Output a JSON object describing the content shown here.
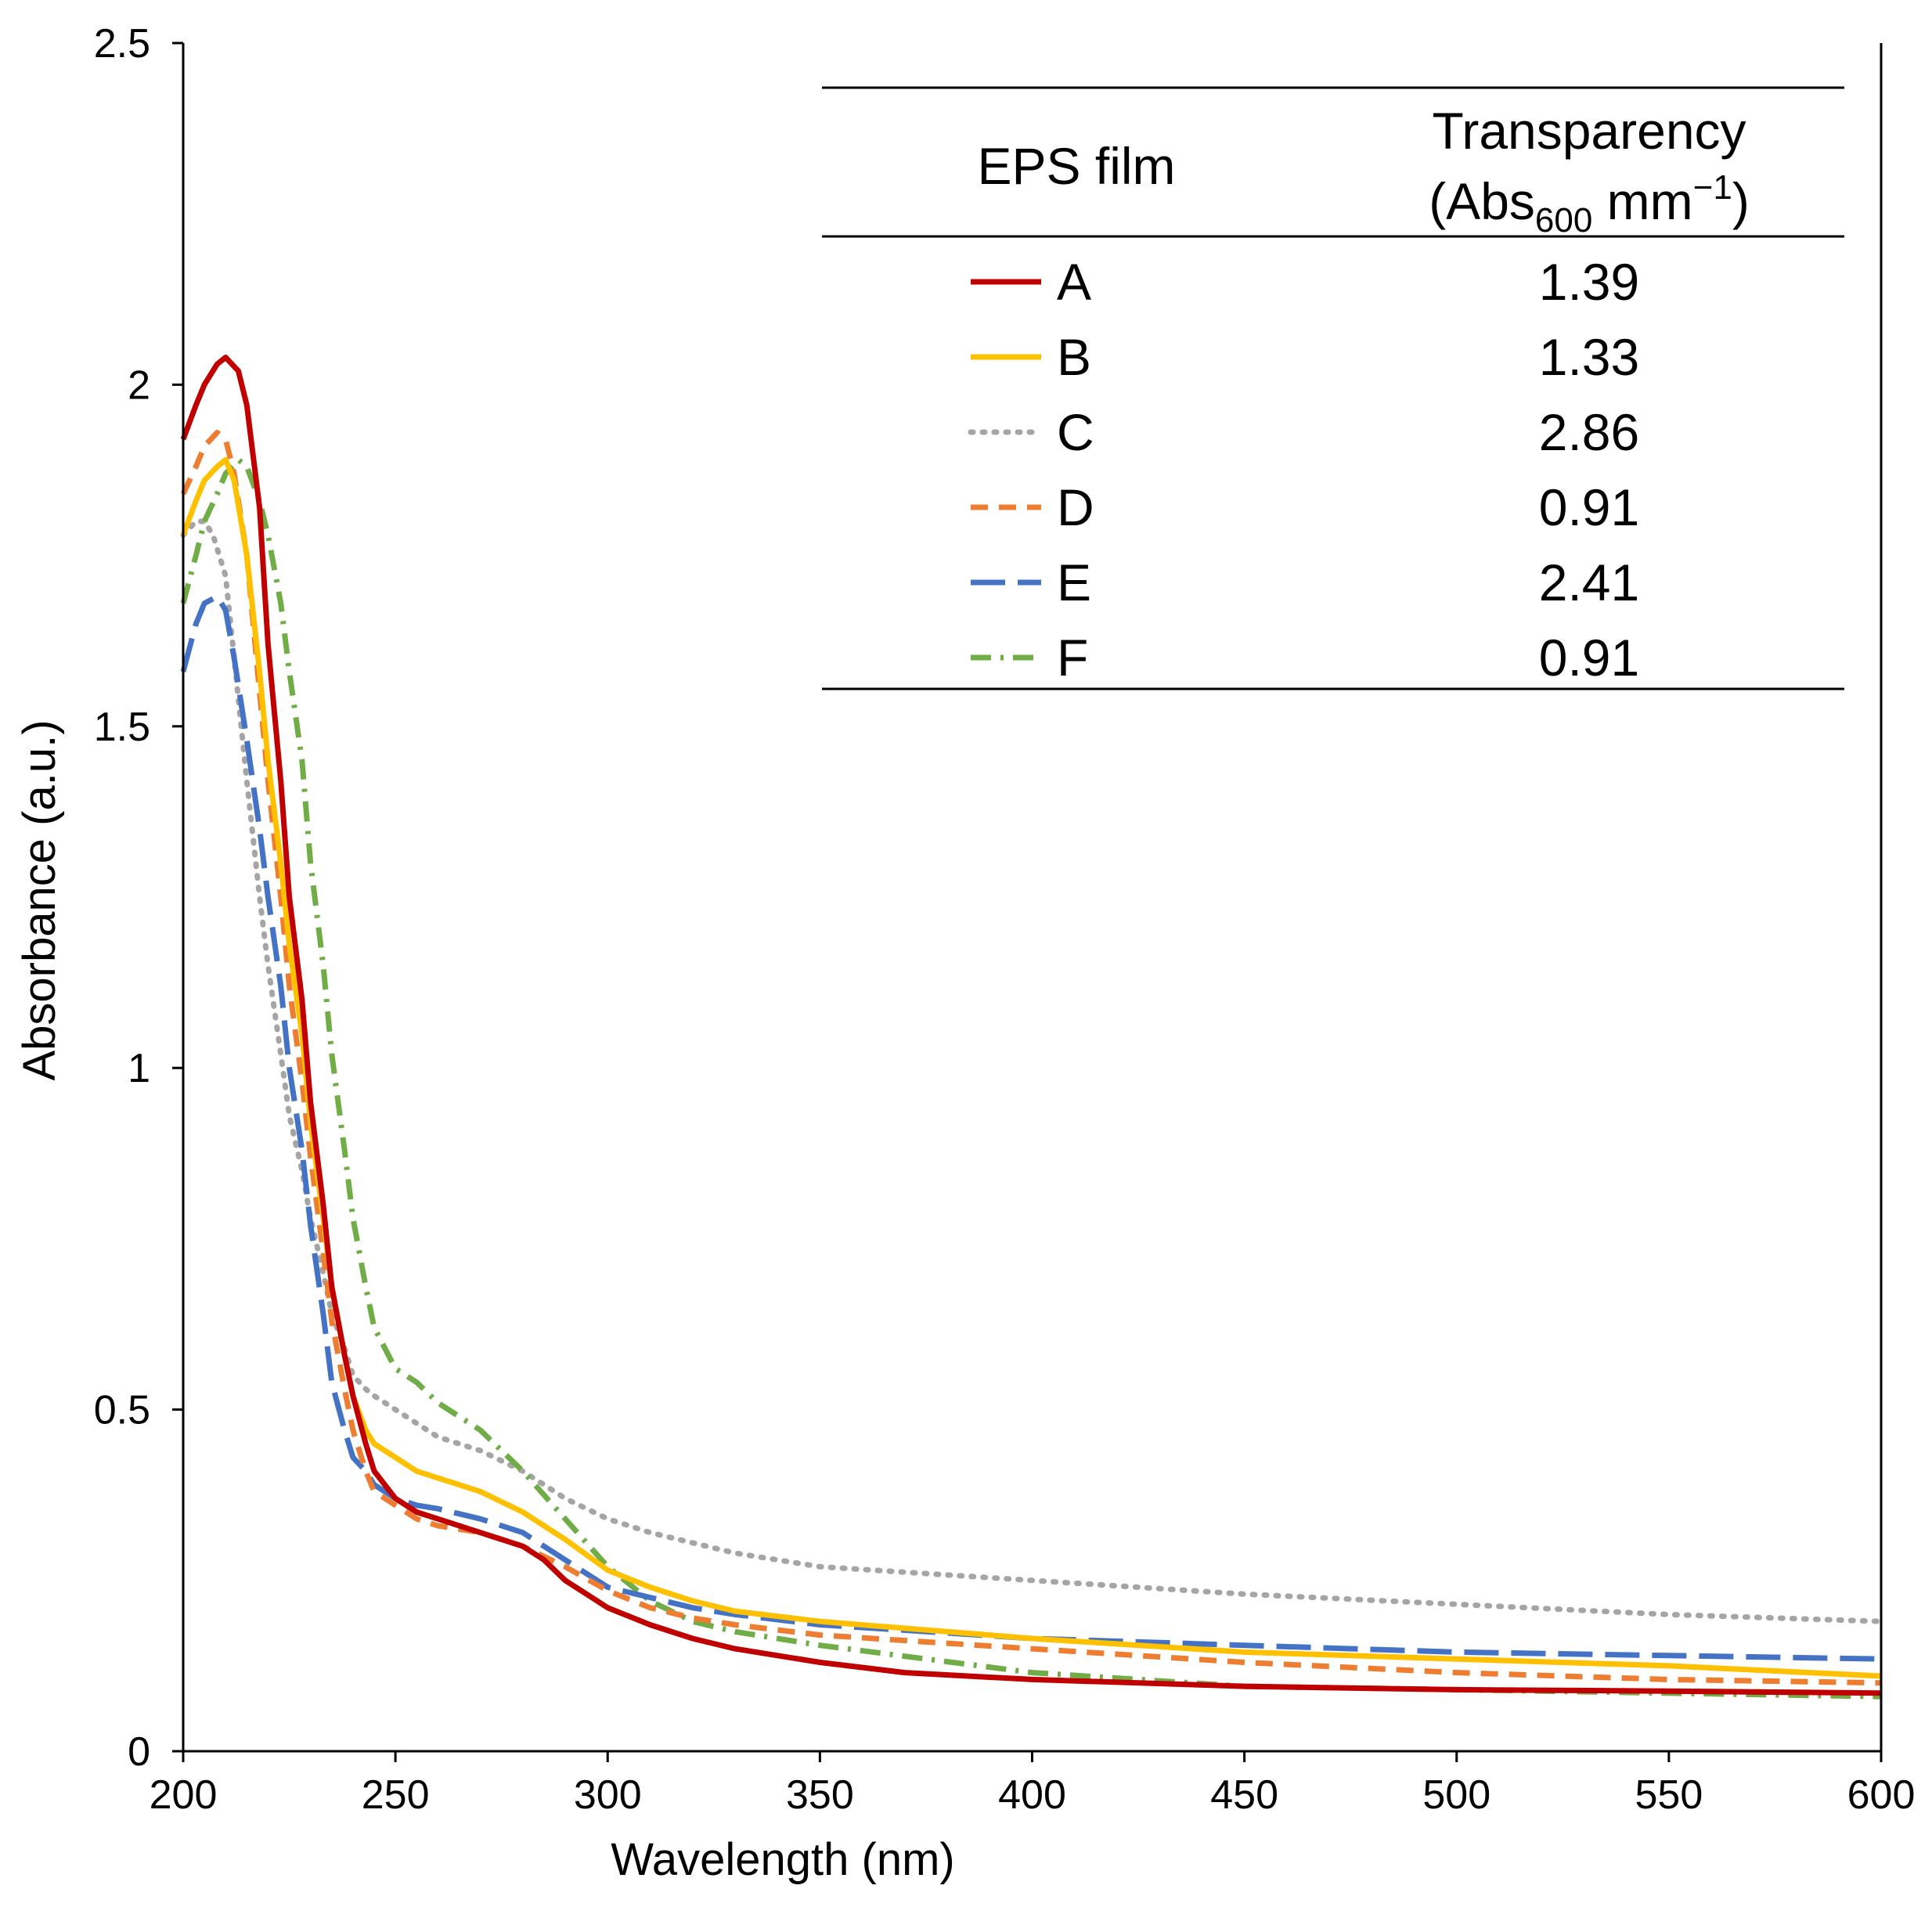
{
  "chart_data": {
    "type": "line",
    "xlabel": "Wavelength (nm)",
    "ylabel": "Absorbance (a.u.)",
    "xlim": [
      200,
      600
    ],
    "ylim": [
      0,
      2.5
    ],
    "x_ticks": [
      200,
      250,
      300,
      350,
      400,
      450,
      500,
      550,
      600
    ],
    "x_tick_labels": [
      "200",
      "250",
      "300",
      "350",
      "400",
      "450",
      "500",
      "550",
      "600"
    ],
    "y_ticks": [
      0,
      0.5,
      1,
      1.5,
      2,
      2.5
    ],
    "y_tick_labels": [
      "0",
      "0.5",
      "1",
      "1.5",
      "2",
      "2.5"
    ],
    "grid": false,
    "legend": {
      "placement": "top-right",
      "header_film": "EPS film",
      "header_transparency": "Transparency",
      "header_unit_prefix": "(Abs",
      "header_unit_sub": "600",
      "header_unit_mid": " mm",
      "header_unit_sup": "−1",
      "header_unit_suffix": ")"
    },
    "series": [
      {
        "name": "A",
        "transparency": "1.39",
        "color": "#C00000",
        "dash": "solid",
        "points": [
          [
            200,
            1.92
          ],
          [
            203,
            1.97
          ],
          [
            205,
            2.0
          ],
          [
            208,
            2.03
          ],
          [
            210,
            2.04
          ],
          [
            213,
            2.02
          ],
          [
            215,
            1.97
          ],
          [
            218,
            1.82
          ],
          [
            220,
            1.62
          ],
          [
            223,
            1.42
          ],
          [
            225,
            1.25
          ],
          [
            228,
            1.1
          ],
          [
            230,
            0.95
          ],
          [
            233,
            0.8
          ],
          [
            235,
            0.68
          ],
          [
            238,
            0.58
          ],
          [
            240,
            0.52
          ],
          [
            243,
            0.45
          ],
          [
            245,
            0.41
          ],
          [
            250,
            0.37
          ],
          [
            255,
            0.35
          ],
          [
            260,
            0.34
          ],
          [
            270,
            0.32
          ],
          [
            280,
            0.3
          ],
          [
            285,
            0.28
          ],
          [
            290,
            0.25
          ],
          [
            300,
            0.21
          ],
          [
            310,
            0.185
          ],
          [
            320,
            0.165
          ],
          [
            330,
            0.15
          ],
          [
            340,
            0.14
          ],
          [
            350,
            0.13
          ],
          [
            370,
            0.115
          ],
          [
            400,
            0.105
          ],
          [
            450,
            0.095
          ],
          [
            500,
            0.09
          ],
          [
            550,
            0.088
          ],
          [
            600,
            0.085
          ]
        ]
      },
      {
        "name": "B",
        "transparency": "1.33",
        "color": "#FFC000",
        "dash": "solid",
        "points": [
          [
            200,
            1.78
          ],
          [
            203,
            1.83
          ],
          [
            205,
            1.86
          ],
          [
            208,
            1.88
          ],
          [
            210,
            1.89
          ],
          [
            212,
            1.86
          ],
          [
            215,
            1.75
          ],
          [
            218,
            1.58
          ],
          [
            220,
            1.45
          ],
          [
            223,
            1.3
          ],
          [
            225,
            1.18
          ],
          [
            228,
            1.05
          ],
          [
            230,
            0.92
          ],
          [
            233,
            0.78
          ],
          [
            235,
            0.68
          ],
          [
            238,
            0.58
          ],
          [
            240,
            0.52
          ],
          [
            243,
            0.47
          ],
          [
            245,
            0.45
          ],
          [
            250,
            0.43
          ],
          [
            255,
            0.41
          ],
          [
            260,
            0.4
          ],
          [
            270,
            0.38
          ],
          [
            280,
            0.35
          ],
          [
            290,
            0.31
          ],
          [
            300,
            0.265
          ],
          [
            310,
            0.24
          ],
          [
            320,
            0.22
          ],
          [
            330,
            0.205
          ],
          [
            350,
            0.19
          ],
          [
            400,
            0.165
          ],
          [
            450,
            0.145
          ],
          [
            500,
            0.135
          ],
          [
            550,
            0.125
          ],
          [
            600,
            0.11
          ]
        ]
      },
      {
        "name": "C",
        "transparency": "2.86",
        "color": "#A5A5A5",
        "dash": "dot",
        "points": [
          [
            200,
            1.78
          ],
          [
            203,
            1.8
          ],
          [
            205,
            1.8
          ],
          [
            207,
            1.78
          ],
          [
            210,
            1.72
          ],
          [
            212,
            1.6
          ],
          [
            215,
            1.42
          ],
          [
            218,
            1.25
          ],
          [
            220,
            1.15
          ],
          [
            223,
            1.02
          ],
          [
            225,
            0.93
          ],
          [
            228,
            0.85
          ],
          [
            230,
            0.78
          ],
          [
            233,
            0.7
          ],
          [
            235,
            0.64
          ],
          [
            238,
            0.59
          ],
          [
            240,
            0.55
          ],
          [
            243,
            0.53
          ],
          [
            245,
            0.52
          ],
          [
            250,
            0.5
          ],
          [
            255,
            0.48
          ],
          [
            260,
            0.46
          ],
          [
            270,
            0.44
          ],
          [
            280,
            0.41
          ],
          [
            290,
            0.37
          ],
          [
            300,
            0.34
          ],
          [
            310,
            0.32
          ],
          [
            320,
            0.305
          ],
          [
            330,
            0.29
          ],
          [
            340,
            0.28
          ],
          [
            350,
            0.27
          ],
          [
            400,
            0.25
          ],
          [
            450,
            0.23
          ],
          [
            500,
            0.215
          ],
          [
            550,
            0.2
          ],
          [
            600,
            0.19
          ]
        ]
      },
      {
        "name": "D",
        "transparency": "0.91",
        "color": "#ED7D31",
        "dash": "dash",
        "points": [
          [
            200,
            1.84
          ],
          [
            203,
            1.88
          ],
          [
            205,
            1.91
          ],
          [
            208,
            1.93
          ],
          [
            210,
            1.92
          ],
          [
            212,
            1.87
          ],
          [
            215,
            1.75
          ],
          [
            218,
            1.55
          ],
          [
            220,
            1.42
          ],
          [
            223,
            1.25
          ],
          [
            225,
            1.12
          ],
          [
            228,
            0.98
          ],
          [
            230,
            0.87
          ],
          [
            233,
            0.73
          ],
          [
            235,
            0.63
          ],
          [
            238,
            0.53
          ],
          [
            240,
            0.47
          ],
          [
            243,
            0.41
          ],
          [
            245,
            0.38
          ],
          [
            250,
            0.36
          ],
          [
            255,
            0.34
          ],
          [
            260,
            0.33
          ],
          [
            270,
            0.32
          ],
          [
            280,
            0.3
          ],
          [
            290,
            0.27
          ],
          [
            300,
            0.235
          ],
          [
            310,
            0.21
          ],
          [
            320,
            0.195
          ],
          [
            330,
            0.185
          ],
          [
            350,
            0.17
          ],
          [
            400,
            0.15
          ],
          [
            450,
            0.13
          ],
          [
            500,
            0.115
          ],
          [
            550,
            0.105
          ],
          [
            600,
            0.1
          ]
        ]
      },
      {
        "name": "E",
        "transparency": "2.41",
        "color": "#4472C4",
        "dash": "longdash",
        "points": [
          [
            200,
            1.58
          ],
          [
            203,
            1.65
          ],
          [
            205,
            1.68
          ],
          [
            208,
            1.69
          ],
          [
            210,
            1.67
          ],
          [
            212,
            1.6
          ],
          [
            215,
            1.48
          ],
          [
            218,
            1.35
          ],
          [
            220,
            1.25
          ],
          [
            223,
            1.12
          ],
          [
            225,
            1.0
          ],
          [
            228,
            0.88
          ],
          [
            230,
            0.77
          ],
          [
            233,
            0.64
          ],
          [
            235,
            0.54
          ],
          [
            238,
            0.47
          ],
          [
            240,
            0.43
          ],
          [
            243,
            0.41
          ],
          [
            245,
            0.39
          ],
          [
            250,
            0.37
          ],
          [
            255,
            0.36
          ],
          [
            260,
            0.355
          ],
          [
            270,
            0.34
          ],
          [
            280,
            0.32
          ],
          [
            290,
            0.28
          ],
          [
            300,
            0.24
          ],
          [
            310,
            0.225
          ],
          [
            320,
            0.21
          ],
          [
            330,
            0.2
          ],
          [
            350,
            0.185
          ],
          [
            400,
            0.165
          ],
          [
            450,
            0.155
          ],
          [
            500,
            0.145
          ],
          [
            550,
            0.14
          ],
          [
            600,
            0.135
          ]
        ]
      },
      {
        "name": "F",
        "transparency": "0.91",
        "color": "#70AD47",
        "dash": "dashdot",
        "points": [
          [
            200,
            1.68
          ],
          [
            203,
            1.75
          ],
          [
            205,
            1.8
          ],
          [
            208,
            1.84
          ],
          [
            210,
            1.87
          ],
          [
            213,
            1.89
          ],
          [
            215,
            1.88
          ],
          [
            218,
            1.83
          ],
          [
            220,
            1.78
          ],
          [
            223,
            1.68
          ],
          [
            225,
            1.58
          ],
          [
            228,
            1.45
          ],
          [
            230,
            1.3
          ],
          [
            233,
            1.15
          ],
          [
            235,
            1.02
          ],
          [
            238,
            0.88
          ],
          [
            240,
            0.78
          ],
          [
            243,
            0.68
          ],
          [
            245,
            0.62
          ],
          [
            250,
            0.56
          ],
          [
            255,
            0.54
          ],
          [
            260,
            0.51
          ],
          [
            270,
            0.47
          ],
          [
            280,
            0.41
          ],
          [
            290,
            0.34
          ],
          [
            300,
            0.27
          ],
          [
            310,
            0.22
          ],
          [
            320,
            0.19
          ],
          [
            330,
            0.175
          ],
          [
            350,
            0.155
          ],
          [
            400,
            0.115
          ],
          [
            450,
            0.095
          ],
          [
            500,
            0.09
          ],
          [
            550,
            0.085
          ],
          [
            600,
            0.08
          ]
        ]
      }
    ]
  }
}
